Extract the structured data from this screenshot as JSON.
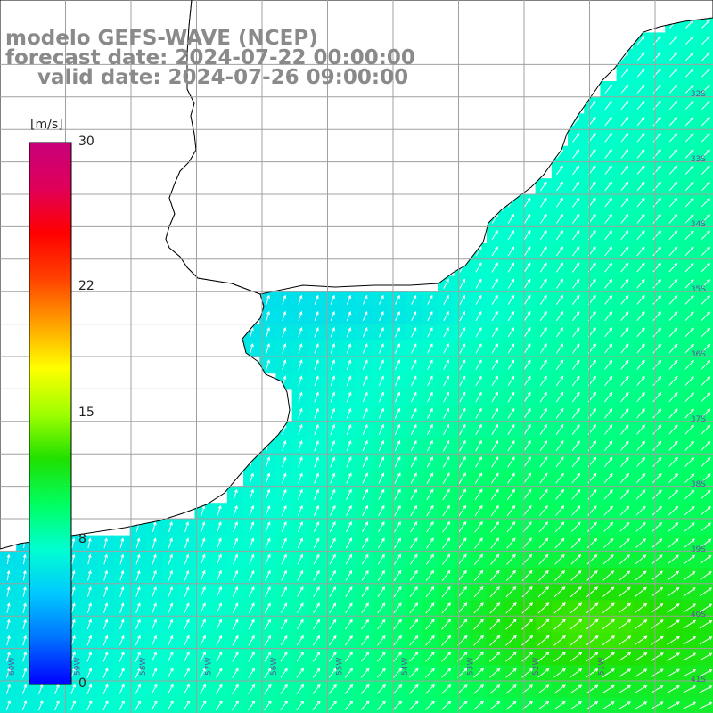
{
  "title": {
    "line1": "modelo GEFS-WAVE (NCEP)",
    "line2": "forecast date: 2024-07-22 00:00:00",
    "line3": "valid date: 2024-07-26 09:00:00"
  },
  "colorbar": {
    "unit": "[m/s]",
    "min": 0,
    "max": 30,
    "tick_labels": [
      "30",
      "22",
      "15",
      "8",
      "0"
    ],
    "tick_values": [
      30,
      22,
      15,
      8,
      0
    ],
    "stops": [
      "#0000ff",
      "#0070ff",
      "#00c8ff",
      "#00ffd0",
      "#00ff60",
      "#20e000",
      "#a0ff00",
      "#ffff00",
      "#ffa000",
      "#ff4000",
      "#ff0000",
      "#e0005a",
      "#c8007a"
    ]
  },
  "map": {
    "lat_labels": [
      "32S",
      "33S",
      "34S",
      "35S",
      "36S",
      "37S",
      "38S",
      "39S",
      "40S",
      "41S"
    ],
    "lon_labels": [
      "60W",
      "59W",
      "58W",
      "57W",
      "56W",
      "55W",
      "54W",
      "53W",
      "52W",
      "51W"
    ],
    "colors": {
      "land": "#ffffff",
      "coast": "#000000",
      "grid": "#a0a0a0",
      "arrow": "#ffffff"
    }
  }
}
